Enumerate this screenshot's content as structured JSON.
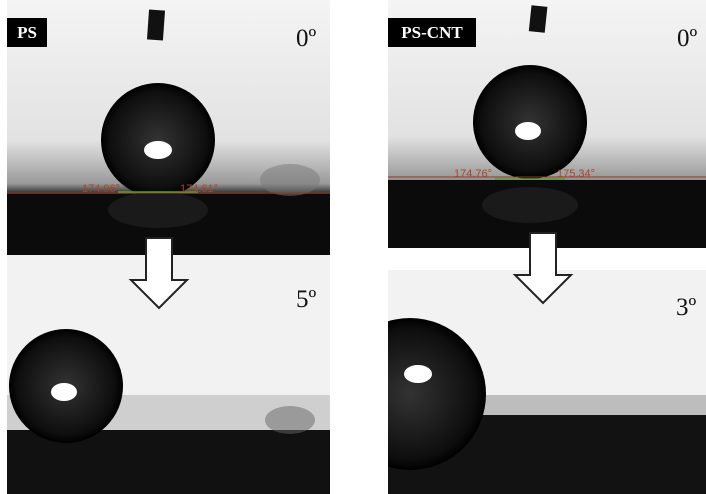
{
  "panels": [
    {
      "label": "PS",
      "top_tilt": "0º",
      "contact_angles": [
        "174.96°",
        "174.61°"
      ],
      "bottom_tilt": "5º"
    },
    {
      "label": "PS-CNT",
      "top_tilt": "0º",
      "contact_angles": [
        "174.76°",
        "175.34°"
      ],
      "bottom_tilt": "3º"
    }
  ]
}
